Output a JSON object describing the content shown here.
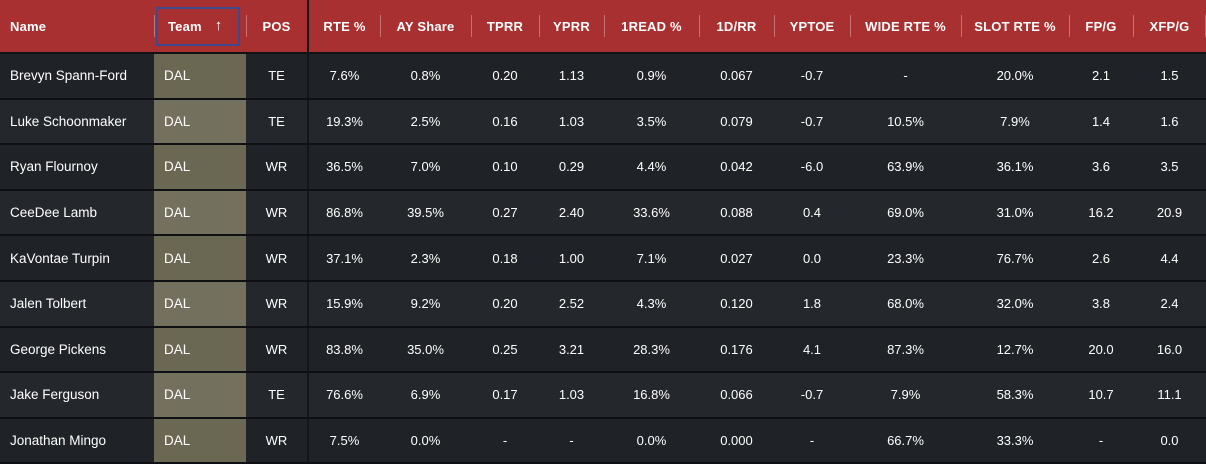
{
  "sort_icon": "↑",
  "columns": [
    {
      "key": "name",
      "label": "Name"
    },
    {
      "key": "team",
      "label": "Team",
      "sorted": true,
      "sort_direction": "ascending"
    },
    {
      "key": "pos",
      "label": "POS"
    },
    {
      "key": "rte",
      "label": "RTE %"
    },
    {
      "key": "ay",
      "label": "AY Share"
    },
    {
      "key": "tprr",
      "label": "TPRR"
    },
    {
      "key": "yprr",
      "label": "YPRR"
    },
    {
      "key": "read1",
      "label": "1READ %"
    },
    {
      "key": "dr",
      "label": "1D/RR"
    },
    {
      "key": "yptoe",
      "label": "YPTOE"
    },
    {
      "key": "wide",
      "label": "WIDE RTE %"
    },
    {
      "key": "slot",
      "label": "SLOT RTE %"
    },
    {
      "key": "fpg",
      "label": "FP/G"
    },
    {
      "key": "xfpg",
      "label": "XFP/G"
    }
  ],
  "rows": [
    {
      "name": "Brevyn Spann-Ford",
      "team": "DAL",
      "pos": "TE",
      "rte": "7.6%",
      "ay": "0.8%",
      "tprr": "0.20",
      "yprr": "1.13",
      "read1": "0.9%",
      "dr": "0.067",
      "yptoe": "-0.7",
      "wide": "-",
      "slot": "20.0%",
      "fpg": "2.1",
      "xfpg": "1.5"
    },
    {
      "name": "Luke Schoonmaker",
      "team": "DAL",
      "pos": "TE",
      "rte": "19.3%",
      "ay": "2.5%",
      "tprr": "0.16",
      "yprr": "1.03",
      "read1": "3.5%",
      "dr": "0.079",
      "yptoe": "-0.7",
      "wide": "10.5%",
      "slot": "7.9%",
      "fpg": "1.4",
      "xfpg": "1.6"
    },
    {
      "name": "Ryan Flournoy",
      "team": "DAL",
      "pos": "WR",
      "rte": "36.5%",
      "ay": "7.0%",
      "tprr": "0.10",
      "yprr": "0.29",
      "read1": "4.4%",
      "dr": "0.042",
      "yptoe": "-6.0",
      "wide": "63.9%",
      "slot": "36.1%",
      "fpg": "3.6",
      "xfpg": "3.5"
    },
    {
      "name": "CeeDee Lamb",
      "team": "DAL",
      "pos": "WR",
      "rte": "86.8%",
      "ay": "39.5%",
      "tprr": "0.27",
      "yprr": "2.40",
      "read1": "33.6%",
      "dr": "0.088",
      "yptoe": "0.4",
      "wide": "69.0%",
      "slot": "31.0%",
      "fpg": "16.2",
      "xfpg": "20.9"
    },
    {
      "name": "KaVontae Turpin",
      "team": "DAL",
      "pos": "WR",
      "rte": "37.1%",
      "ay": "2.3%",
      "tprr": "0.18",
      "yprr": "1.00",
      "read1": "7.1%",
      "dr": "0.027",
      "yptoe": "0.0",
      "wide": "23.3%",
      "slot": "76.7%",
      "fpg": "2.6",
      "xfpg": "4.4"
    },
    {
      "name": "Jalen Tolbert",
      "team": "DAL",
      "pos": "WR",
      "rte": "15.9%",
      "ay": "9.2%",
      "tprr": "0.20",
      "yprr": "2.52",
      "read1": "4.3%",
      "dr": "0.120",
      "yptoe": "1.8",
      "wide": "68.0%",
      "slot": "32.0%",
      "fpg": "3.8",
      "xfpg": "2.4"
    },
    {
      "name": "George Pickens",
      "team": "DAL",
      "pos": "WR",
      "rte": "83.8%",
      "ay": "35.0%",
      "tprr": "0.25",
      "yprr": "3.21",
      "read1": "28.3%",
      "dr": "0.176",
      "yptoe": "4.1",
      "wide": "87.3%",
      "slot": "12.7%",
      "fpg": "20.0",
      "xfpg": "16.0"
    },
    {
      "name": "Jake Ferguson",
      "team": "DAL",
      "pos": "TE",
      "rte": "76.6%",
      "ay": "6.9%",
      "tprr": "0.17",
      "yprr": "1.03",
      "read1": "16.8%",
      "dr": "0.066",
      "yptoe": "-0.7",
      "wide": "7.9%",
      "slot": "58.3%",
      "fpg": "10.7",
      "xfpg": "11.1"
    },
    {
      "name": "Jonathan Mingo",
      "team": "DAL",
      "pos": "WR",
      "rte": "7.5%",
      "ay": "0.0%",
      "tprr": "-",
      "yprr": "-",
      "read1": "0.0%",
      "dr": "0.000",
      "yptoe": "-",
      "wide": "66.7%",
      "slot": "33.3%",
      "fpg": "-",
      "xfpg": "0.0"
    }
  ],
  "colors": {
    "header_background": "#a93030",
    "header_text": "#ffffff",
    "sort_box_border": "#3e4a8d",
    "row_dark": "#1f2226",
    "row_light": "#24272c",
    "team_cell_dark": "#6a6752",
    "team_cell_light": "#73705e",
    "row_separator": "#0e1013",
    "frozen_divider": "#131519"
  }
}
